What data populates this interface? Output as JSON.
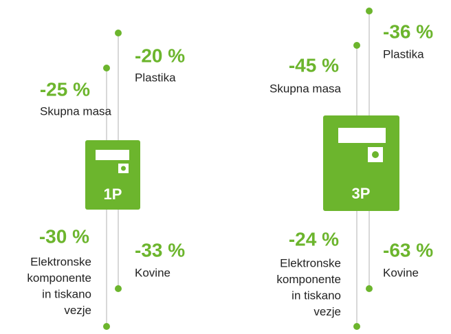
{
  "devices": [
    {
      "label": "1P",
      "items": [
        {
          "value": "-20 %",
          "label": [
            "Plastika"
          ]
        },
        {
          "value": "-25 %",
          "label": [
            "Skupna masa"
          ]
        },
        {
          "value": "-30 %",
          "label": [
            "Elektronske",
            "komponente",
            "in tiskano",
            "vezje"
          ]
        },
        {
          "value": "-33 %",
          "label": [
            "Kovine"
          ]
        }
      ]
    },
    {
      "label": "3P",
      "items": [
        {
          "value": "-36 %",
          "label": [
            "Plastika"
          ]
        },
        {
          "value": "-45 %",
          "label": [
            "Skupna masa"
          ]
        },
        {
          "value": "-24 %",
          "label": [
            "Elektronske",
            "komponente",
            "in tiskano",
            "vezje"
          ]
        },
        {
          "value": "-63 %",
          "label": [
            "Kovine"
          ]
        }
      ]
    }
  ]
}
